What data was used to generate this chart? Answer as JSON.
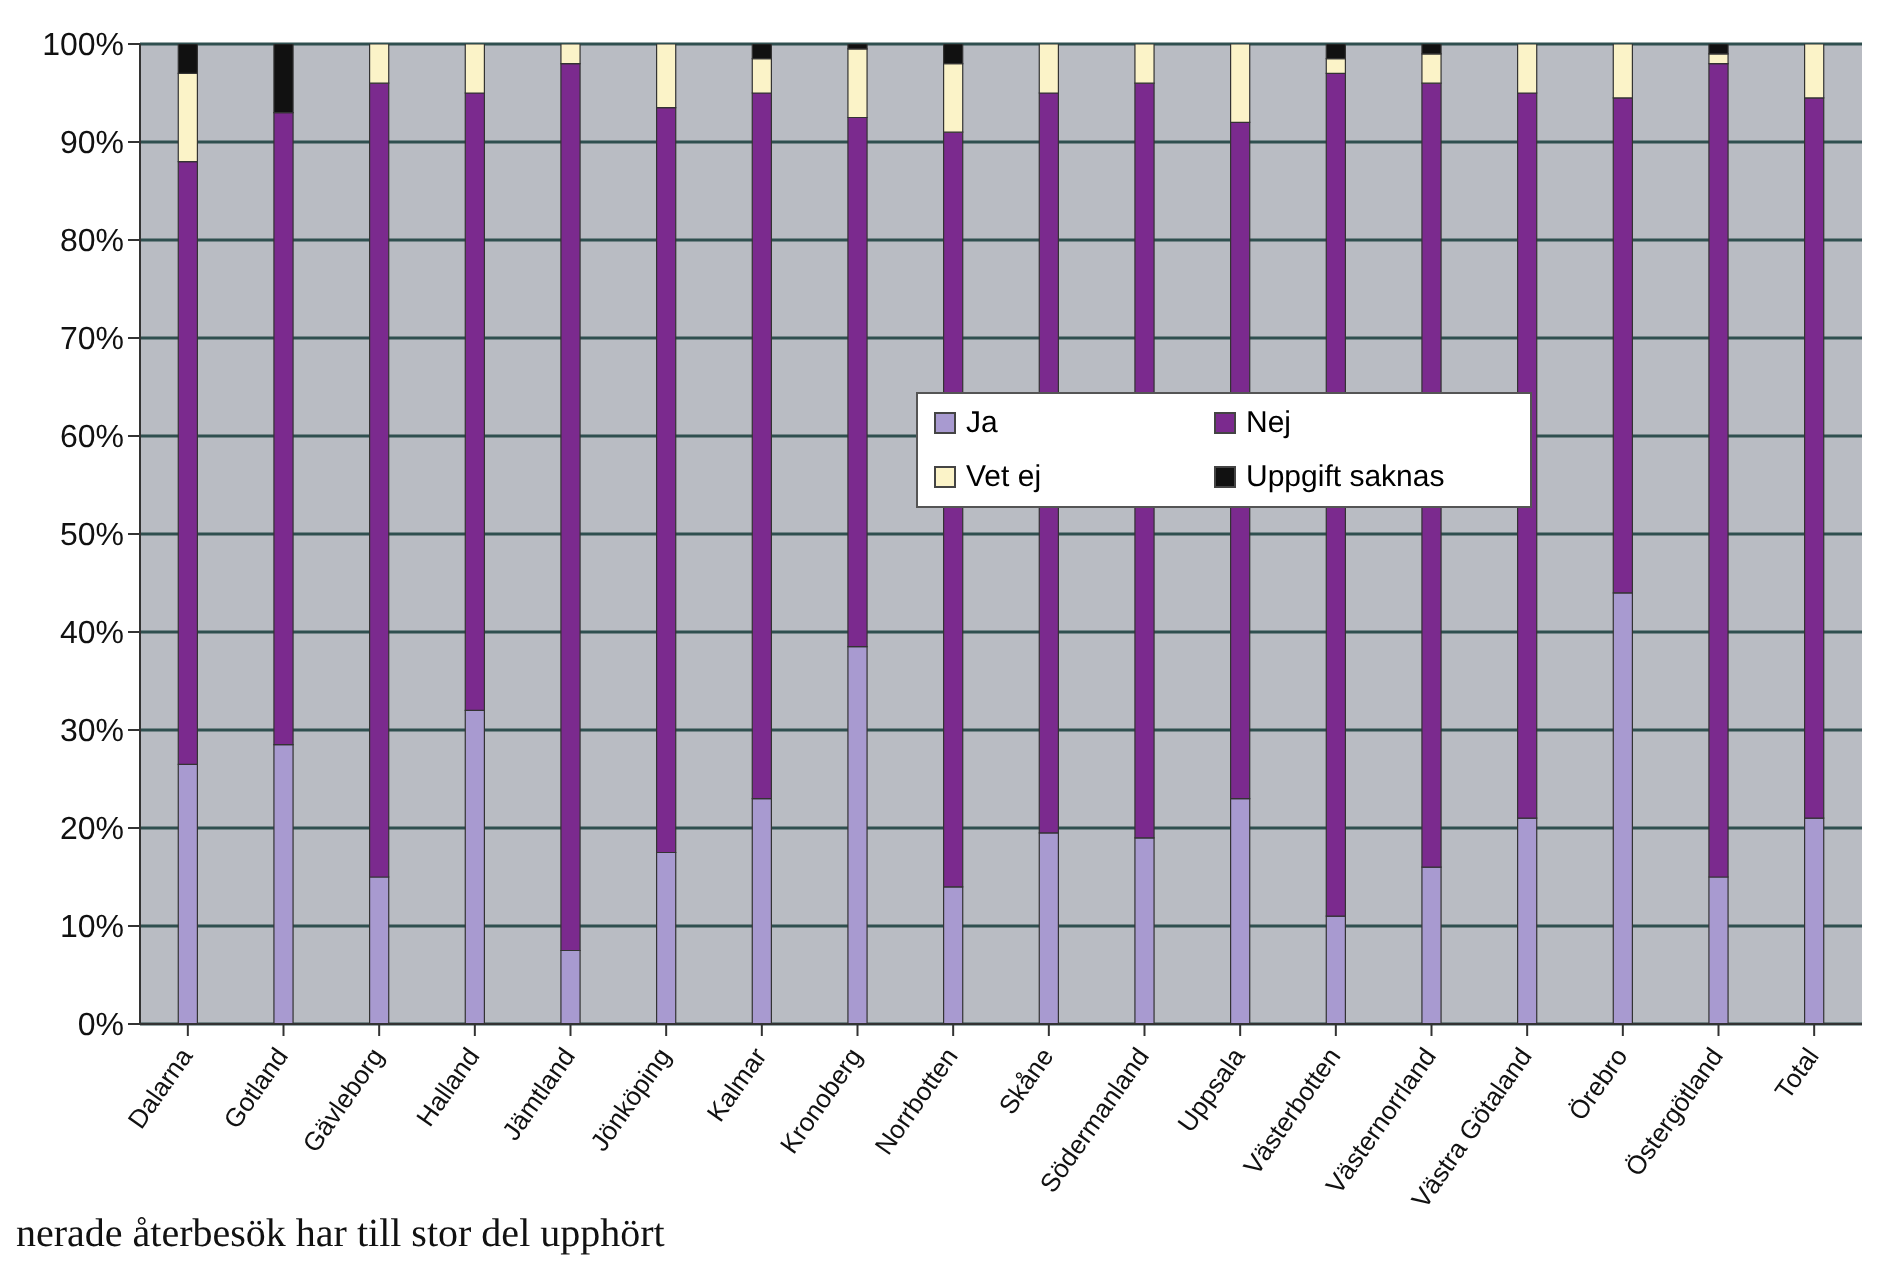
{
  "chart_data": {
    "type": "bar",
    "stacked": true,
    "categories": [
      "Dalarna",
      "Gotland",
      "Gävleborg",
      "Halland",
      "Jämtland",
      "Jönköping",
      "Kalmar",
      "Kronoberg",
      "Norrbotten",
      "Skåne",
      "Södermanland",
      "Uppsala",
      "Västerbotten",
      "Västernorrland",
      "Västra Götaland",
      "Örebro",
      "Östergötland",
      "Total"
    ],
    "series": [
      {
        "name": "Ja",
        "color": "#a89ad0",
        "values": [
          26.5,
          28.5,
          15,
          32,
          7.5,
          17.5,
          23,
          38.5,
          14,
          19.5,
          19,
          23,
          11,
          16,
          21,
          44,
          15,
          21
        ]
      },
      {
        "name": "Nej",
        "color": "#7b2a8e",
        "values": [
          61.5,
          64.5,
          81,
          63,
          90.5,
          76,
          72,
          54,
          77,
          75.5,
          77,
          69,
          86,
          80,
          74,
          50.5,
          83,
          73.5
        ]
      },
      {
        "name": "Vet ej",
        "color": "#fbf3c8",
        "values": [
          9,
          0,
          4,
          5,
          2,
          6.5,
          3.5,
          7,
          7,
          5,
          4,
          8,
          1.5,
          3,
          5,
          5.5,
          1,
          5.5
        ]
      },
      {
        "name": "Uppgift saknas",
        "color": "#111111",
        "values": [
          3,
          7,
          0,
          0,
          0,
          0,
          1.5,
          0.5,
          2,
          0,
          0,
          0,
          1.5,
          1,
          0,
          0,
          1,
          0
        ]
      }
    ],
    "ylim": [
      0,
      100
    ],
    "yticks": [
      {
        "value": 0,
        "label": "0%"
      },
      {
        "value": 10,
        "label": "10%"
      },
      {
        "value": 20,
        "label": "20%"
      },
      {
        "value": 30,
        "label": "30%"
      },
      {
        "value": 40,
        "label": "40%"
      },
      {
        "value": 50,
        "label": "50%"
      },
      {
        "value": 60,
        "label": "60%"
      },
      {
        "value": 70,
        "label": "70%"
      },
      {
        "value": 80,
        "label": "80%"
      },
      {
        "value": 90,
        "label": "90%"
      },
      {
        "value": 100,
        "label": "100%"
      }
    ],
    "grid": "y",
    "legend": "center",
    "annotations": [
      "nerade återbesök har till stor del upphört"
    ]
  }
}
